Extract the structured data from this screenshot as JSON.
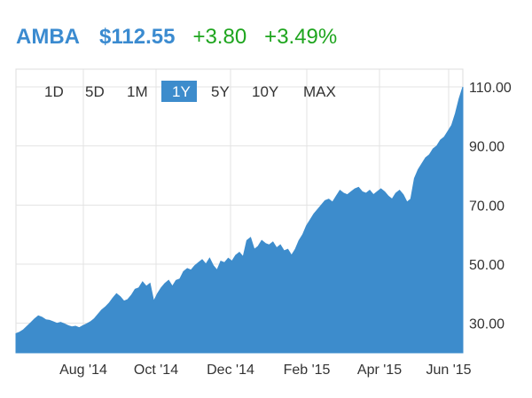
{
  "header": {
    "ticker": "AMBA",
    "price": "$112.55",
    "change": "+3.80",
    "change_pct": "+3.49%"
  },
  "colors": {
    "accent": "#3b8bd0",
    "area_fill": "#3d8ccc",
    "positive": "#1ea51e",
    "selected_bg": "#3d8ccc",
    "grid": "#e3e3e3"
  },
  "range_buttons": [
    {
      "label": "1D",
      "selected": false
    },
    {
      "label": "5D",
      "selected": false
    },
    {
      "label": "1M",
      "selected": false
    },
    {
      "label": "1Y",
      "selected": true
    },
    {
      "label": "5Y",
      "selected": false
    },
    {
      "label": "10Y",
      "selected": false
    },
    {
      "label": "MAX",
      "selected": false
    }
  ],
  "chart_data": {
    "type": "area",
    "x_ticks": [
      "Aug '14",
      "Oct '14",
      "Dec '14",
      "Feb '15",
      "Apr '15",
      "Jun '15"
    ],
    "y_ticks": [
      "30.00",
      "50.00",
      "70.00",
      "90.00",
      "110.00"
    ],
    "ylim": [
      20,
      116
    ],
    "xlim": [
      0,
      360
    ],
    "grid": true,
    "series": [
      {
        "x": [
          0,
          3,
          6,
          9,
          12,
          15,
          18,
          21,
          24,
          27,
          30,
          33,
          36,
          39,
          42,
          45,
          48,
          51,
          54,
          57,
          60,
          63,
          66,
          69,
          72,
          75,
          78,
          81,
          84,
          87,
          90,
          93,
          96,
          99,
          102,
          105,
          108,
          111,
          114,
          117,
          120,
          123,
          126,
          129,
          132,
          135,
          138,
          141,
          144,
          147,
          150,
          153,
          156,
          159,
          162,
          165,
          168,
          171,
          174,
          177,
          180,
          183,
          186,
          189,
          192,
          195,
          198,
          201,
          204,
          207,
          210,
          213,
          216,
          219,
          222,
          225,
          228,
          231,
          234,
          237,
          240,
          243,
          246,
          249,
          252,
          255,
          258,
          261,
          264,
          267,
          270,
          273,
          276,
          279,
          282,
          285,
          288,
          291,
          294,
          297,
          300,
          303,
          306,
          309,
          312,
          315,
          318,
          321,
          324,
          327,
          330,
          333,
          336,
          339,
          342,
          345,
          348,
          351,
          354,
          357,
          360
        ],
        "values": [
          26.5,
          27.0,
          27.8,
          29.0,
          30.2,
          31.5,
          32.5,
          32.0,
          31.2,
          31.0,
          30.5,
          30.0,
          30.3,
          29.8,
          29.2,
          28.8,
          29.0,
          28.5,
          29.2,
          29.8,
          30.5,
          31.5,
          33.0,
          34.5,
          35.5,
          36.8,
          38.5,
          40.0,
          39.0,
          37.5,
          38.0,
          39.5,
          41.5,
          42.0,
          44.0,
          42.5,
          43.5,
          37.5,
          40.0,
          42.0,
          43.5,
          44.5,
          42.5,
          44.5,
          45.0,
          47.5,
          48.5,
          48.0,
          49.5,
          50.5,
          51.5,
          50.0,
          52.0,
          49.5,
          48.0,
          51.0,
          50.5,
          52.0,
          51.0,
          53.0,
          54.0,
          52.5,
          58.0,
          59.0,
          55.0,
          56.0,
          58.0,
          57.0,
          56.5,
          57.5,
          55.5,
          56.5,
          54.5,
          55.0,
          53.0,
          55.0,
          58.0,
          60.0,
          63.0,
          65.0,
          67.0,
          68.5,
          70.0,
          71.5,
          72.0,
          71.0,
          73.0,
          75.0,
          74.0,
          73.5,
          74.5,
          75.5,
          76.0,
          74.5,
          74.0,
          75.0,
          73.5,
          74.5,
          75.5,
          74.5,
          73.0,
          72.0,
          74.0,
          75.0,
          73.5,
          71.0,
          72.0,
          79.0,
          82.0,
          84.0,
          86.0,
          87.0,
          89.0,
          90.0,
          92.0,
          93.0,
          95.0,
          97.0,
          101.0,
          106.0,
          110.0
        ]
      }
    ]
  }
}
